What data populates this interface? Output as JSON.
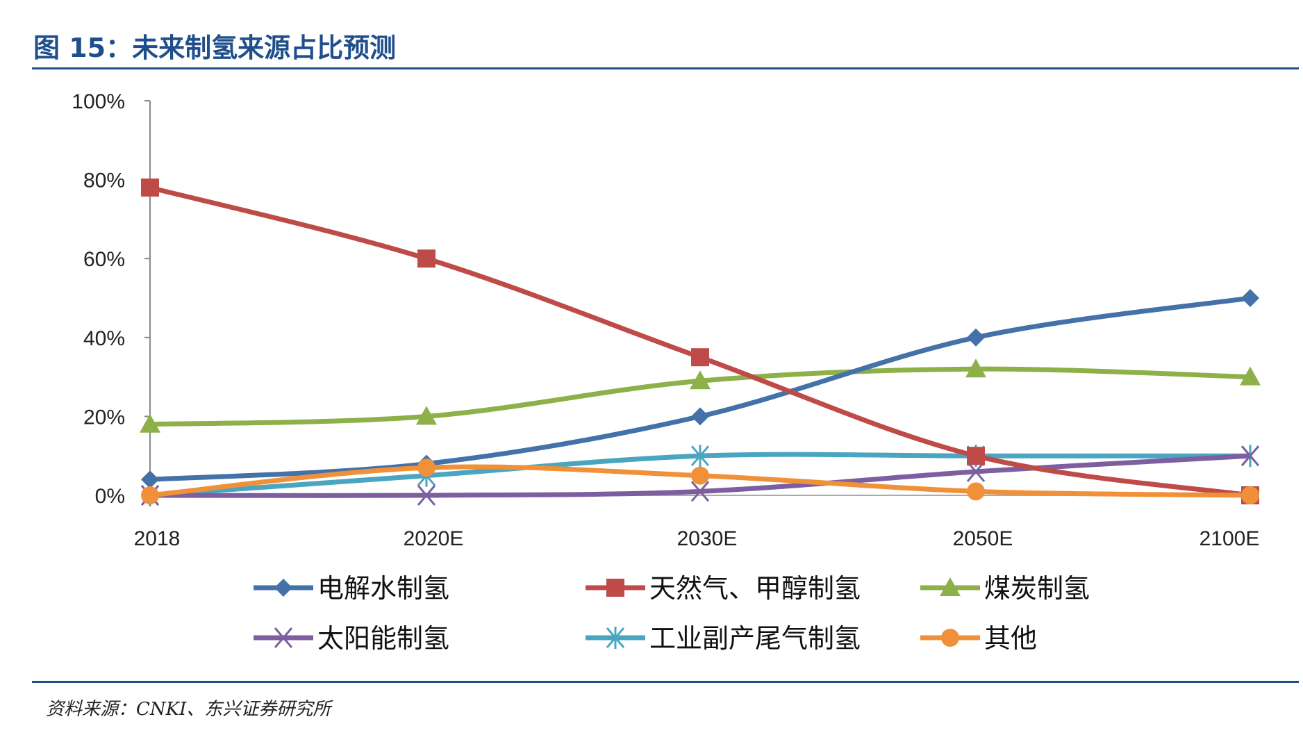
{
  "header": {
    "title": "图 15：未来制氢来源占比预测"
  },
  "footer": {
    "source": "资料来源：CNKI、东兴证券研究所"
  },
  "chart_data": {
    "type": "line",
    "title": "",
    "xlabel": "",
    "ylabel": "",
    "categories": [
      "2018",
      "2020E",
      "2030E",
      "2050E",
      "2100E"
    ],
    "ylim": [
      0,
      100
    ],
    "yticks": [
      "0%",
      "20%",
      "40%",
      "60%",
      "80%",
      "100%"
    ],
    "legend_position": "bottom",
    "grid": false,
    "smooth": true,
    "series": [
      {
        "name": "电解水制氢",
        "values": [
          4,
          8,
          20,
          40,
          50
        ],
        "color": "#4472a8",
        "marker": "diamond"
      },
      {
        "name": "天然气、甲醇制氢",
        "values": [
          78,
          60,
          35,
          10,
          0
        ],
        "color": "#be4b48",
        "marker": "square"
      },
      {
        "name": "煤炭制氢",
        "values": [
          18,
          20,
          29,
          32,
          30
        ],
        "color": "#8db049",
        "marker": "triangle"
      },
      {
        "name": "太阳能制氢",
        "values": [
          0,
          0,
          1,
          6,
          10
        ],
        "color": "#7d5fa0",
        "marker": "x"
      },
      {
        "name": "工业副产尾气制氢",
        "values": [
          0,
          5,
          10,
          10,
          10
        ],
        "color": "#4aa6c0",
        "marker": "star"
      },
      {
        "name": "其他",
        "values": [
          0,
          7,
          5,
          1,
          0
        ],
        "color": "#f0913a",
        "marker": "circle"
      }
    ]
  }
}
